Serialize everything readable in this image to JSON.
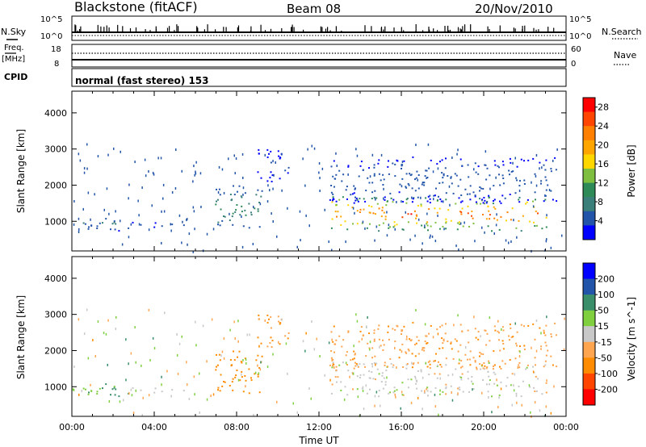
{
  "header": {
    "station": "Blackstone (fitACF)",
    "beam": "Beam 08",
    "date": "20/Nov/2010"
  },
  "nsky_panel": {
    "left_label": "N.Sky",
    "left_ticks": [
      "10^5",
      "10^0"
    ],
    "right_label": "N.Search",
    "right_ticks": [
      "10^5",
      "10^0"
    ]
  },
  "freq_panel": {
    "left_label_1": "Freq.",
    "left_label_2": "[MHz]",
    "left_ticks": [
      "18",
      "8"
    ],
    "right_label": "Nave",
    "right_ticks": [
      "60",
      "0"
    ]
  },
  "cpid_panel": {
    "label": "CPID",
    "text": "normal (fast stereo) 153"
  },
  "colors": {
    "scale_power": [
      "#0000ff",
      "#2255aa",
      "#3a7f7a",
      "#2e8b57",
      "#7fbf3f",
      "#ffd700",
      "#ffa500",
      "#ff7f00",
      "#ff4500",
      "#ff0000"
    ],
    "scale_velocity": [
      "#ff0000",
      "#ff4500",
      "#ff8c00",
      "#ffb347",
      "#c8c8c8",
      "#c8c8c8",
      "#7fcf3f",
      "#2e8b57",
      "#2255aa",
      "#0000ff"
    ]
  },
  "chart_data": [
    {
      "type": "heatmap",
      "title": "",
      "quantity": "Power",
      "xlabel": "",
      "ylabel": "Slant Range [km]",
      "xlim": [
        0,
        24
      ],
      "ylim": [
        180,
        4600
      ],
      "y_ticks": [
        "1000",
        "2000",
        "3000",
        "4000"
      ],
      "colorbar_label": "Power [dB]",
      "colorbar_ticks": [
        "4",
        "8",
        "12",
        "16",
        "20",
        "24",
        "28"
      ],
      "colorbar_range": [
        0,
        30
      ],
      "scatter_regions": [
        {
          "time_start": 0.0,
          "time_end": 2.8,
          "range_low": 750,
          "range_high": 1150,
          "peak": 8
        },
        {
          "time_start": 2.8,
          "time_end": 5.5,
          "range_low": 850,
          "range_high": 1000,
          "peak": 6
        },
        {
          "time_start": 6.8,
          "time_end": 9.3,
          "range_low": 800,
          "range_high": 2000,
          "peak": 12
        },
        {
          "time_start": 9.0,
          "time_end": 10.5,
          "range_low": 2000,
          "range_high": 3000,
          "peak": 4
        },
        {
          "time_start": 12.5,
          "time_end": 23.2,
          "range_low": 750,
          "range_high": 1700,
          "peak": 28
        },
        {
          "time_start": 12.5,
          "time_end": 23.5,
          "range_low": 1500,
          "range_high": 2800,
          "peak": 6
        }
      ]
    },
    {
      "type": "heatmap",
      "title": "",
      "quantity": "Velocity",
      "xlabel": "Time UT",
      "ylabel": "Slant Range [km]",
      "xlim": [
        0,
        24
      ],
      "ylim": [
        180,
        4600
      ],
      "x_ticks": [
        "00:00",
        "04:00",
        "08:00",
        "12:00",
        "16:00",
        "20:00",
        "00:00"
      ],
      "y_ticks": [
        "1000",
        "2000",
        "3000",
        "4000"
      ],
      "colorbar_label": "Velocity [m s^-1]",
      "colorbar_ticks": [
        "200",
        "100",
        "50",
        "15",
        "-15",
        "-50",
        "-100",
        "-200"
      ],
      "scatter_regions": [
        {
          "time_start": 0.0,
          "time_end": 2.8,
          "range_low": 750,
          "range_high": 1150,
          "velocity": 50
        },
        {
          "time_start": 2.8,
          "time_end": 5.5,
          "range_low": 850,
          "range_high": 1000,
          "velocity": 0
        },
        {
          "time_start": 6.8,
          "time_end": 9.3,
          "range_low": 800,
          "range_high": 2000,
          "velocity": -80
        },
        {
          "time_start": 9.0,
          "time_end": 10.5,
          "range_low": 2000,
          "range_high": 3000,
          "velocity": -50
        },
        {
          "time_start": 12.5,
          "time_end": 23.2,
          "range_low": 750,
          "range_high": 1700,
          "velocity": 0
        },
        {
          "time_start": 12.5,
          "time_end": 23.5,
          "range_low": 1500,
          "range_high": 2800,
          "velocity": -40
        }
      ]
    }
  ]
}
